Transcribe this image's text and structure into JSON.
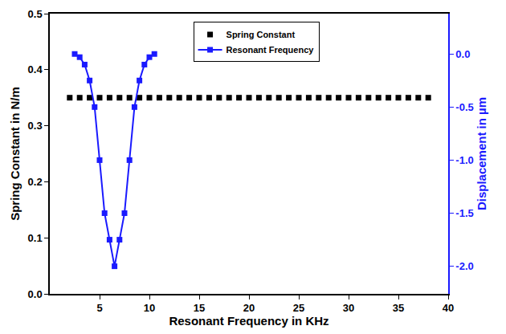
{
  "chart_data": {
    "type": "line",
    "x_label": "Resonant Frequency in KHz",
    "y_label": "Spring Constant in N/m",
    "y2_label": "Displacement in µm",
    "xlim": [
      0,
      40
    ],
    "xticks": [
      5,
      10,
      15,
      20,
      25,
      30,
      35,
      40
    ],
    "ylim": [
      0,
      0.5
    ],
    "yticks": [
      {
        "value": 0,
        "label": "0.0"
      },
      0.1,
      0.2,
      0.3,
      0.4,
      0.5
    ],
    "y2lim": [
      -2.26,
      0.38
    ],
    "y2ticks": [
      {
        "value": 0,
        "label": "0.0"
      },
      -0.5,
      {
        "value": -1,
        "label": "-1.0"
      },
      -1.5,
      {
        "value": -2,
        "label": "-2.0"
      }
    ],
    "grid": false,
    "legend": "top",
    "series": [
      {
        "name": "Spring Constant",
        "type": "scatter",
        "color": "#000000",
        "marker": "square",
        "x": [
          2,
          3,
          4,
          5,
          6,
          7,
          8,
          9,
          10,
          11,
          12,
          13,
          14,
          15,
          16,
          17,
          18,
          19,
          20,
          21,
          22,
          23,
          24,
          25,
          26,
          27,
          28,
          29,
          30,
          31,
          32,
          33,
          34,
          35,
          36,
          37,
          38
        ],
        "values": [
          0.35,
          0.35,
          0.35,
          0.35,
          0.35,
          0.35,
          0.35,
          0.35,
          0.35,
          0.35,
          0.35,
          0.35,
          0.35,
          0.35,
          0.35,
          0.35,
          0.35,
          0.35,
          0.35,
          0.35,
          0.35,
          0.35,
          0.35,
          0.35,
          0.35,
          0.35,
          0.35,
          0.35,
          0.35,
          0.35,
          0.35,
          0.35,
          0.35,
          0.35,
          0.35,
          0.35,
          0.35
        ]
      },
      {
        "name": "Resonant Frequency",
        "type": "line",
        "color": "#1a1aff",
        "marker": "square",
        "axis": "y2",
        "x": [
          2.5,
          3,
          3.5,
          4,
          4.5,
          5,
          5.5,
          6,
          6.5,
          7,
          7.5,
          8,
          8.5,
          9,
          9.5,
          10,
          10.5
        ],
        "values": [
          0.0,
          -0.03,
          -0.1,
          -0.25,
          -0.5,
          -1.0,
          -1.5,
          -1.75,
          -2.0,
          -1.75,
          -1.5,
          -1.0,
          -0.5,
          -0.25,
          -0.1,
          -0.03,
          0.0
        ]
      }
    ]
  }
}
